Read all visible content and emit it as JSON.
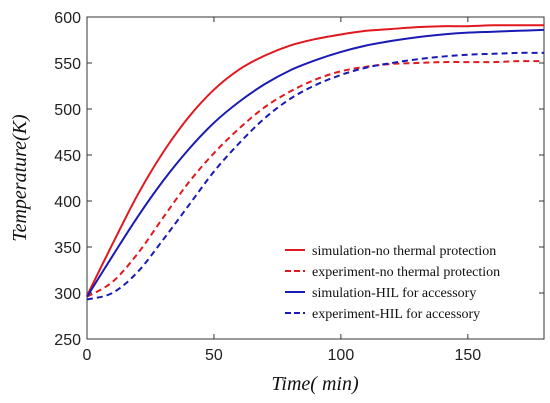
{
  "chart_data": {
    "type": "line",
    "xlabel": "Time( min)",
    "ylabel": "Temperature(K)",
    "xlim": [
      0,
      180
    ],
    "ylim": [
      250,
      600
    ],
    "xticks": [
      0,
      50,
      100,
      150
    ],
    "yticks": [
      250,
      300,
      350,
      400,
      450,
      500,
      550,
      600
    ],
    "xtick_labels": [
      "0",
      "50",
      "100",
      "150"
    ],
    "ytick_labels": [
      "250",
      "300",
      "350",
      "400",
      "450",
      "500",
      "550",
      "600"
    ],
    "grid": false,
    "legend_position": "bottom-right",
    "x": [
      0,
      10,
      20,
      30,
      40,
      50,
      60,
      70,
      80,
      90,
      100,
      110,
      120,
      130,
      140,
      150,
      160,
      170,
      180
    ],
    "series": [
      {
        "name": "simulation-no thermal protection",
        "color": "#e0191f",
        "style": "solid",
        "values": [
          297,
          353,
          407,
          453,
          491,
          521,
          543,
          558,
          569,
          576,
          581,
          585,
          587,
          589,
          590,
          590,
          591,
          591,
          591
        ]
      },
      {
        "name": "experiment-no thermal protection",
        "color": "#e0191f",
        "style": "dashed",
        "values": [
          296,
          312,
          343,
          382,
          420,
          452,
          479,
          502,
          519,
          532,
          541,
          546,
          549,
          550,
          551,
          551,
          551,
          552,
          552
        ]
      },
      {
        "name": "simulation-HIL for accessory",
        "color": "#1a1ab5",
        "style": "solid",
        "values": [
          296,
          340,
          383,
          422,
          456,
          485,
          508,
          527,
          542,
          553,
          562,
          569,
          574,
          578,
          581,
          583,
          584,
          585,
          586
        ]
      },
      {
        "name": "experiment-HIL for accessory",
        "color": "#1a1ab5",
        "style": "dashed",
        "values": [
          293,
          300,
          323,
          358,
          395,
          432,
          463,
          490,
          511,
          526,
          537,
          545,
          550,
          554,
          557,
          559,
          560,
          561,
          561
        ]
      }
    ]
  }
}
